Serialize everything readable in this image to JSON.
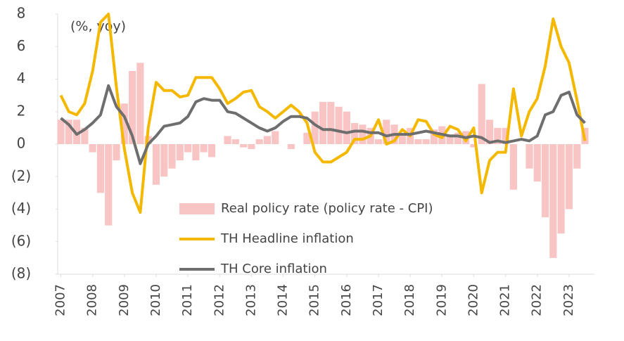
{
  "chart_data": {
    "type": "combo",
    "annotation": "(%, yoy)",
    "x": [
      2007,
      2007.25,
      2007.5,
      2007.75,
      2008,
      2008.25,
      2008.5,
      2008.75,
      2009,
      2009.25,
      2009.5,
      2009.75,
      2010,
      2010.25,
      2010.5,
      2010.75,
      2011,
      2011.25,
      2011.5,
      2011.75,
      2012,
      2012.25,
      2012.5,
      2012.75,
      2013,
      2013.25,
      2013.5,
      2013.75,
      2014,
      2014.25,
      2014.5,
      2014.75,
      2015,
      2015.25,
      2015.5,
      2015.75,
      2016,
      2016.25,
      2016.5,
      2016.75,
      2017,
      2017.25,
      2017.5,
      2017.75,
      2018,
      2018.25,
      2018.5,
      2018.75,
      2019,
      2019.25,
      2019.5,
      2019.75,
      2020,
      2020.25,
      2020.5,
      2020.75,
      2021,
      2021.25,
      2021.5,
      2021.75,
      2022,
      2022.25,
      2022.5,
      2022.75,
      2023,
      2023.25,
      2023.5
    ],
    "series": [
      {
        "name": "Real policy rate (policy rate - CPI)",
        "kind": "bar",
        "color": "#f8c4c4",
        "values": [
          1.5,
          1.5,
          1.5,
          1.0,
          -0.5,
          -3.0,
          -5.0,
          -1.0,
          2.5,
          4.5,
          5.0,
          0.5,
          -2.5,
          -2.0,
          -1.5,
          -1.0,
          -0.5,
          -1.0,
          -0.5,
          -0.8,
          0.0,
          0.5,
          0.3,
          -0.2,
          -0.3,
          0.3,
          0.5,
          0.8,
          0.0,
          -0.3,
          0.0,
          0.7,
          2.0,
          2.6,
          2.6,
          2.3,
          2.0,
          1.3,
          1.2,
          1.0,
          0.3,
          1.5,
          1.2,
          0.5,
          1.0,
          0.3,
          0.3,
          0.9,
          1.1,
          0.6,
          0.7,
          0.8,
          -0.2,
          3.7,
          1.5,
          1.0,
          1.0,
          -2.8,
          0.0,
          -1.5,
          -2.3,
          -4.5,
          -7.0,
          -5.5,
          -4.0,
          -1.5,
          1.0
        ]
      },
      {
        "name": "TH Headline inflation",
        "kind": "line",
        "color": "#f5b800",
        "values": [
          3.0,
          2.0,
          1.8,
          2.5,
          4.5,
          7.5,
          8.0,
          3.5,
          -0.3,
          -3.0,
          -4.2,
          1.0,
          3.8,
          3.3,
          3.3,
          2.9,
          3.0,
          4.1,
          4.1,
          4.1,
          3.4,
          2.5,
          2.8,
          3.2,
          3.3,
          2.3,
          2.0,
          1.6,
          2.0,
          2.4,
          2.0,
          1.3,
          -0.5,
          -1.1,
          -1.1,
          -0.8,
          -0.5,
          0.3,
          0.3,
          0.5,
          1.5,
          0.0,
          0.2,
          0.9,
          0.5,
          1.5,
          1.4,
          0.6,
          0.4,
          1.1,
          0.9,
          0.2,
          1.0,
          -3.0,
          -1.0,
          -0.5,
          -0.5,
          3.4,
          0.5,
          2.0,
          2.8,
          4.8,
          7.7,
          6.0,
          5.0,
          2.7,
          0.2
        ]
      },
      {
        "name": "TH Core inflation",
        "kind": "line",
        "color": "#6e6e6e",
        "values": [
          1.6,
          1.2,
          0.6,
          0.9,
          1.3,
          1.8,
          3.6,
          2.3,
          1.7,
          0.5,
          -1.2,
          0.0,
          0.5,
          1.1,
          1.2,
          1.3,
          1.7,
          2.6,
          2.8,
          2.7,
          2.7,
          2.0,
          1.9,
          1.6,
          1.3,
          1.0,
          0.8,
          1.0,
          1.4,
          1.7,
          1.7,
          1.6,
          1.2,
          0.9,
          0.9,
          0.8,
          0.7,
          0.8,
          0.8,
          0.7,
          0.7,
          0.5,
          0.6,
          0.6,
          0.6,
          0.7,
          0.8,
          0.7,
          0.6,
          0.5,
          0.5,
          0.4,
          0.5,
          0.4,
          0.1,
          0.2,
          0.1,
          0.2,
          0.3,
          0.2,
          0.5,
          1.8,
          2.0,
          3.0,
          3.2,
          1.8,
          1.3
        ]
      }
    ],
    "xlim": [
      2006.9,
      2023.8
    ],
    "xticks": [
      2007,
      2008,
      2009,
      2010,
      2011,
      2012,
      2013,
      2014,
      2015,
      2016,
      2017,
      2018,
      2019,
      2020,
      2021,
      2022,
      2023
    ],
    "ylim": [
      -8,
      8
    ],
    "yticks": [
      {
        "value": -8,
        "label": "(8)"
      },
      {
        "value": -6,
        "label": "(6)"
      },
      {
        "value": -4,
        "label": "(4)"
      },
      {
        "value": -2,
        "label": "(2)"
      },
      0,
      2,
      4,
      6,
      8
    ],
    "grid": false,
    "legend": "bottom-center"
  }
}
